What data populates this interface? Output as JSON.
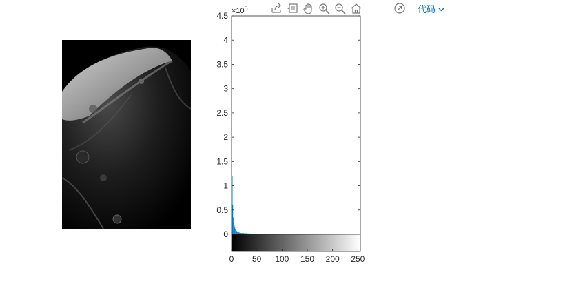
{
  "toolbar": {
    "icons": [
      "export-icon",
      "data-tips-icon",
      "pan-icon",
      "zoom-in-icon",
      "zoom-out-icon",
      "home-icon"
    ],
    "open_in_window_icon": "open-in-window-icon",
    "code_menu_label": "代码"
  },
  "chart_data": {
    "type": "bar",
    "title": "",
    "xlabel": "",
    "ylabel": "",
    "x_range": [
      0,
      255
    ],
    "xlim": [
      0,
      255
    ],
    "ylim": [
      0,
      450000
    ],
    "y_multiplier_label": "×10",
    "y_multiplier_exponent": "5",
    "x_tick_labels": [
      "0",
      "50",
      "100",
      "150",
      "200",
      "250"
    ],
    "x_tick_values": [
      0,
      50,
      100,
      150,
      200,
      250
    ],
    "y_tick_labels": [
      "0",
      "0.5",
      "1",
      "1.5",
      "2",
      "2.5",
      "3",
      "3.5",
      "4",
      "4.5"
    ],
    "y_tick_values": [
      0,
      50000,
      100000,
      150000,
      200000,
      250000,
      300000,
      350000,
      400000,
      450000
    ],
    "series": [
      {
        "color": "#0072bd",
        "bins": [
          0,
          1,
          2,
          3,
          4,
          5,
          6,
          7,
          8,
          9,
          10,
          11,
          12,
          13,
          14,
          15,
          16,
          17,
          18,
          19,
          20,
          25,
          30,
          35,
          40,
          50,
          60,
          70,
          80,
          90,
          100,
          120,
          140,
          160,
          180,
          200,
          220,
          240,
          250,
          255
        ],
        "counts": [
          410000,
          120000,
          60000,
          35000,
          25000,
          18000,
          14000,
          11000,
          9000,
          7500,
          6500,
          5500,
          5000,
          4500,
          4000,
          3600,
          3300,
          3000,
          2800,
          2600,
          2400,
          2000,
          1700,
          1500,
          1300,
          1100,
          1000,
          900,
          850,
          800,
          750,
          700,
          650,
          600,
          600,
          650,
          1200,
          900,
          700,
          1500
        ]
      }
    ],
    "colorbar": "grayscale-0-255",
    "grid": false,
    "legend": "none"
  }
}
